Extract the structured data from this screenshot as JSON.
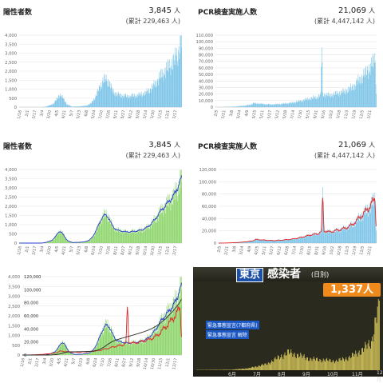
{
  "panels": {
    "p1": {
      "title": "陽性者数",
      "value": "3,845",
      "unit": "人",
      "total": "(累計 229,463 人)"
    },
    "p2": {
      "title": "PCR検査実施人数",
      "value": "21,069",
      "unit": "人",
      "total": "(累計 4,447,142 人)"
    },
    "p3": {
      "title": "陽性者数",
      "value": "3,845",
      "unit": "人",
      "total": "(累計 229,463 人)"
    },
    "p4": {
      "title": "PCR検査実施人数",
      "value": "21,069",
      "unit": "人",
      "total": "(累計 4,447,142 人)"
    }
  },
  "tv": {
    "tokyo": "東京",
    "title": "感染者",
    "sub": "(日別)",
    "count": "1,337人",
    "label1": "緊急事態宣言(7都府県)",
    "label2": "緊急事態宣言 解除",
    "axis_months": [
      "6月",
      "7月",
      "8月",
      "9月",
      "10月",
      "11月",
      "12月"
    ]
  },
  "colors": {
    "bar_blue": "#7cc4e8",
    "bar_green": "#8fd66e",
    "line_blue": "#2a3fd0",
    "line_red": "#e02828",
    "line_dark": "#2b2b2b",
    "grid": "#e6e6e6",
    "tv_bar": "#d8c85c"
  },
  "chart_data": [
    {
      "id": "positive_bars",
      "type": "bar",
      "x_ticks": [
        "1/16",
        "2/1",
        "2/17",
        "3/4",
        "3/20",
        "4/5",
        "4/21",
        "5/7",
        "5/23",
        "6/8",
        "6/24",
        "7/10",
        "7/26",
        "8/11",
        "8/27",
        "9/12",
        "9/28",
        "10/14",
        "10/30",
        "11/15",
        "12/1",
        "12/17"
      ],
      "y_ticks": [
        "0",
        "500",
        "1,000",
        "1,500",
        "2,000",
        "2,500",
        "3,000",
        "3,500",
        "4,000"
      ],
      "ylim": [
        0,
        4000
      ],
      "anchors": [
        [
          0,
          0
        ],
        [
          48,
          0
        ],
        [
          60,
          60
        ],
        [
          72,
          200
        ],
        [
          80,
          500
        ],
        [
          84,
          700
        ],
        [
          88,
          620
        ],
        [
          94,
          400
        ],
        [
          100,
          150
        ],
        [
          110,
          30
        ],
        [
          125,
          40
        ],
        [
          140,
          80
        ],
        [
          150,
          200
        ],
        [
          160,
          600
        ],
        [
          170,
          1200
        ],
        [
          175,
          1450
        ],
        [
          180,
          1550
        ],
        [
          188,
          1400
        ],
        [
          195,
          900
        ],
        [
          205,
          700
        ],
        [
          215,
          650
        ],
        [
          225,
          600
        ],
        [
          235,
          620
        ],
        [
          245,
          650
        ],
        [
          255,
          700
        ],
        [
          265,
          800
        ],
        [
          275,
          1000
        ],
        [
          285,
          1300
        ],
        [
          295,
          1700
        ],
        [
          305,
          2000
        ],
        [
          315,
          2300
        ],
        [
          325,
          2600
        ],
        [
          332,
          3000
        ],
        [
          337,
          3400
        ],
        [
          340,
          3845
        ]
      ]
    },
    {
      "id": "pcr_bars",
      "type": "bar",
      "x_ticks": [
        "2/5",
        "2/21",
        "3/8",
        "3/24",
        "4/9",
        "4/25",
        "5/11",
        "5/27",
        "6/12",
        "6/28",
        "7/14",
        "7/30",
        "8/15",
        "8/31",
        "9/16",
        "10/2",
        "10/18",
        "11/3",
        "11/19",
        "12/5",
        "12/21"
      ],
      "y_ticks": [
        "0",
        "10,000",
        "20,000",
        "30,000",
        "40,000",
        "50,000",
        "60,000",
        "70,000",
        "80,000",
        "90,000",
        "100,000",
        "110,000"
      ],
      "ylim": [
        0,
        110000
      ],
      "anchors": [
        [
          0,
          0
        ],
        [
          20,
          300
        ],
        [
          40,
          1000
        ],
        [
          60,
          2500
        ],
        [
          70,
          4000
        ],
        [
          75,
          6000
        ],
        [
          90,
          5000
        ],
        [
          110,
          4000
        ],
        [
          130,
          5000
        ],
        [
          150,
          6500
        ],
        [
          165,
          9000
        ],
        [
          180,
          12000
        ],
        [
          190,
          14000
        ],
        [
          200,
          15000
        ],
        [
          208,
          19000
        ],
        [
          210,
          102000
        ],
        [
          212,
          20000
        ],
        [
          225,
          18000
        ],
        [
          240,
          21000
        ],
        [
          255,
          24000
        ],
        [
          270,
          30000
        ],
        [
          285,
          42000
        ],
        [
          295,
          50000
        ],
        [
          305,
          60000
        ],
        [
          312,
          68000
        ],
        [
          316,
          73000
        ],
        [
          318,
          21069
        ]
      ]
    },
    {
      "id": "positive_combo",
      "type": "bar",
      "x_ticks": [
        "1/16",
        "2/1",
        "2/17",
        "3/4",
        "3/20",
        "4/5",
        "4/21",
        "5/7",
        "5/23",
        "6/8",
        "6/24",
        "7/10",
        "7/26",
        "8/11",
        "8/27",
        "9/12",
        "9/28",
        "10/14",
        "10/30",
        "11/15",
        "12/1",
        "12/17"
      ],
      "y_ticks": [
        "0",
        "500",
        "1,000",
        "1,500",
        "2,000",
        "2,500",
        "3,000",
        "3,500",
        "4,000"
      ],
      "ylim": [
        0,
        4000
      ],
      "series": [
        {
          "name": "",
          "color": "#2a3fd0"
        }
      ],
      "anchors": [
        [
          0,
          0
        ],
        [
          48,
          0
        ],
        [
          60,
          60
        ],
        [
          72,
          200
        ],
        [
          80,
          500
        ],
        [
          84,
          700
        ],
        [
          88,
          620
        ],
        [
          94,
          400
        ],
        [
          100,
          150
        ],
        [
          110,
          30
        ],
        [
          125,
          40
        ],
        [
          140,
          80
        ],
        [
          150,
          200
        ],
        [
          160,
          600
        ],
        [
          170,
          1200
        ],
        [
          175,
          1450
        ],
        [
          180,
          1550
        ],
        [
          188,
          1400
        ],
        [
          195,
          900
        ],
        [
          205,
          700
        ],
        [
          215,
          650
        ],
        [
          225,
          600
        ],
        [
          235,
          620
        ],
        [
          245,
          650
        ],
        [
          255,
          700
        ],
        [
          265,
          800
        ],
        [
          275,
          1000
        ],
        [
          285,
          1300
        ],
        [
          295,
          1700
        ],
        [
          305,
          2000
        ],
        [
          315,
          2300
        ],
        [
          325,
          2600
        ],
        [
          332,
          3000
        ],
        [
          337,
          3400
        ],
        [
          340,
          3845
        ]
      ]
    },
    {
      "id": "pcr_combo",
      "type": "bar",
      "x_ticks": [
        "2/5",
        "2/21",
        "3/8",
        "3/24",
        "4/9",
        "4/25",
        "5/11",
        "5/27",
        "6/12",
        "6/28",
        "7/14",
        "7/30",
        "8/15",
        "8/31",
        "9/16",
        "10/2",
        "10/18",
        "11/3",
        "11/19",
        "12/5",
        "12/21"
      ],
      "y_ticks": [
        "0",
        "20,000",
        "40,000",
        "60,000",
        "80,000",
        "100,000",
        "120,000"
      ],
      "ylim": [
        0,
        120000
      ],
      "series": [
        {
          "name": "",
          "color": "#e02828"
        }
      ],
      "anchors": [
        [
          0,
          0
        ],
        [
          20,
          300
        ],
        [
          40,
          1000
        ],
        [
          60,
          2500
        ],
        [
          70,
          4000
        ],
        [
          75,
          6000
        ],
        [
          90,
          5000
        ],
        [
          110,
          4000
        ],
        [
          130,
          5000
        ],
        [
          150,
          6500
        ],
        [
          165,
          9000
        ],
        [
          180,
          12000
        ],
        [
          190,
          14000
        ],
        [
          200,
          15000
        ],
        [
          208,
          19000
        ],
        [
          210,
          102000
        ],
        [
          212,
          20000
        ],
        [
          225,
          18000
        ],
        [
          240,
          21000
        ],
        [
          255,
          24000
        ],
        [
          270,
          30000
        ],
        [
          285,
          42000
        ],
        [
          295,
          50000
        ],
        [
          305,
          60000
        ],
        [
          312,
          68000
        ],
        [
          316,
          73000
        ],
        [
          318,
          21069
        ]
      ]
    },
    {
      "id": "combined",
      "type": "bar",
      "x_ticks": [
        "1/16",
        "2/1",
        "2/17",
        "3/4",
        "3/20",
        "4/5",
        "4/21",
        "5/7",
        "5/23",
        "6/8",
        "6/24",
        "7/10",
        "7/26",
        "8/11",
        "8/27",
        "9/12",
        "9/28",
        "10/14",
        "10/30",
        "11/15",
        "12/1",
        "12/17"
      ],
      "y_ticks_left": [
        "0",
        "500",
        "1,000",
        "1,500",
        "2,000",
        "2,500",
        "3,000",
        "3,500",
        "4,000"
      ],
      "y_ticks_right": [
        "0",
        "20,000",
        "40,000",
        "60,000",
        "80,000",
        "100,000",
        "120,000"
      ],
      "ylim": [
        0,
        4000
      ]
    }
  ]
}
